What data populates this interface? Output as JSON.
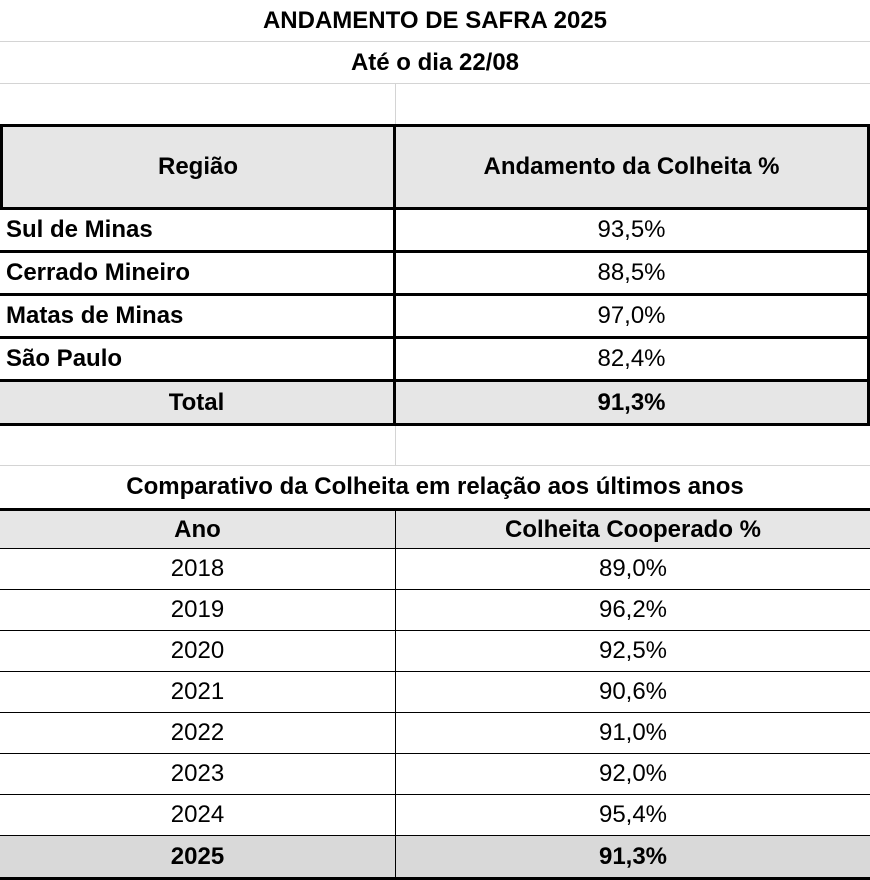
{
  "title": "ANDAMENTO DE SAFRA 2025",
  "subtitle": "Até o dia 22/08",
  "regions_table": {
    "headers": [
      "Região",
      "Andamento da Colheita %"
    ],
    "rows": [
      {
        "region": "Sul de Minas",
        "value": "93,5%"
      },
      {
        "region": "Cerrado Mineiro",
        "value": "88,5%"
      },
      {
        "region": "Matas de Minas",
        "value": "97,0%"
      },
      {
        "region": "São Paulo",
        "value": "82,4%"
      }
    ],
    "total": {
      "label": "Total",
      "value": "91,3%"
    }
  },
  "comparison_table": {
    "title": "Comparativo da Colheita em relação aos últimos anos",
    "headers": [
      "Ano",
      "Colheita Cooperado %"
    ],
    "rows": [
      {
        "year": "2018",
        "value": "89,0%"
      },
      {
        "year": "2019",
        "value": "96,2%"
      },
      {
        "year": "2020",
        "value": "92,5%"
      },
      {
        "year": "2021",
        "value": "90,6%"
      },
      {
        "year": "2022",
        "value": "91,0%"
      },
      {
        "year": "2023",
        "value": "92,0%"
      },
      {
        "year": "2024",
        "value": "95,4%"
      }
    ],
    "current": {
      "year": "2025",
      "value": "91,3%"
    }
  },
  "colors": {
    "header_fill": "#e6e6e6",
    "current_fill": "#d9d9d9",
    "gridline": "#d4d4d4"
  }
}
